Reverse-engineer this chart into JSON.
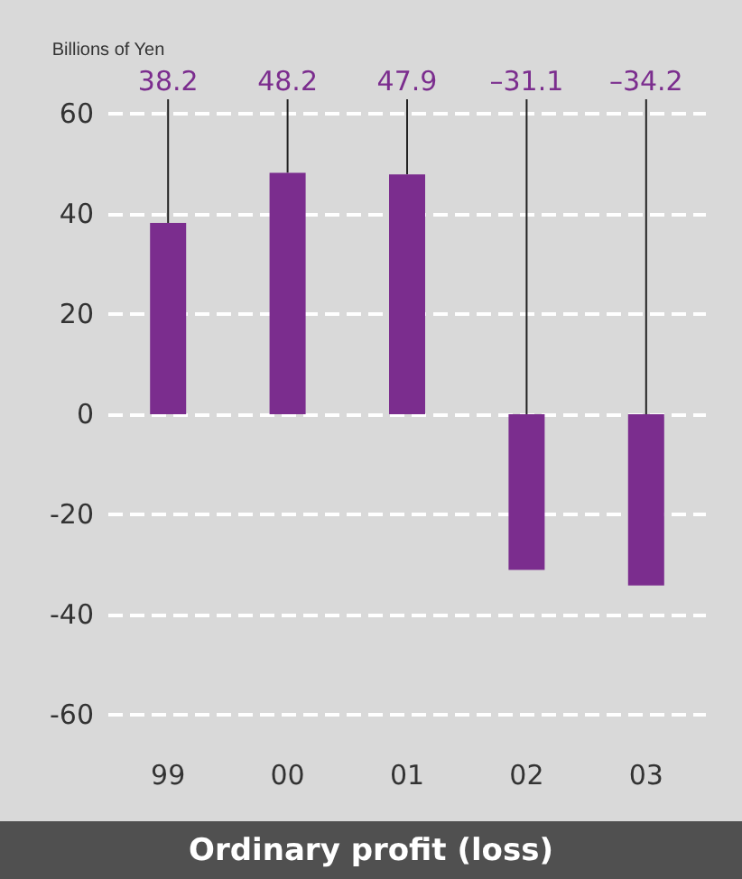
{
  "chart_data": {
    "type": "bar",
    "title": "Ordinary profit (loss)",
    "ylabel": "Billions of Yen",
    "categories": [
      "99",
      "00",
      "01",
      "02",
      "03"
    ],
    "values": [
      38.2,
      48.2,
      47.9,
      -31.1,
      -34.2
    ],
    "value_labels": [
      "38.2",
      "48.2",
      "47.9",
      "–31.1",
      "–34.2"
    ],
    "color": "#7b2d8e",
    "ylim": [
      -60,
      60
    ],
    "yticks": [
      -60,
      -40,
      -20,
      0,
      20,
      40,
      60
    ],
    "grid": "y"
  }
}
